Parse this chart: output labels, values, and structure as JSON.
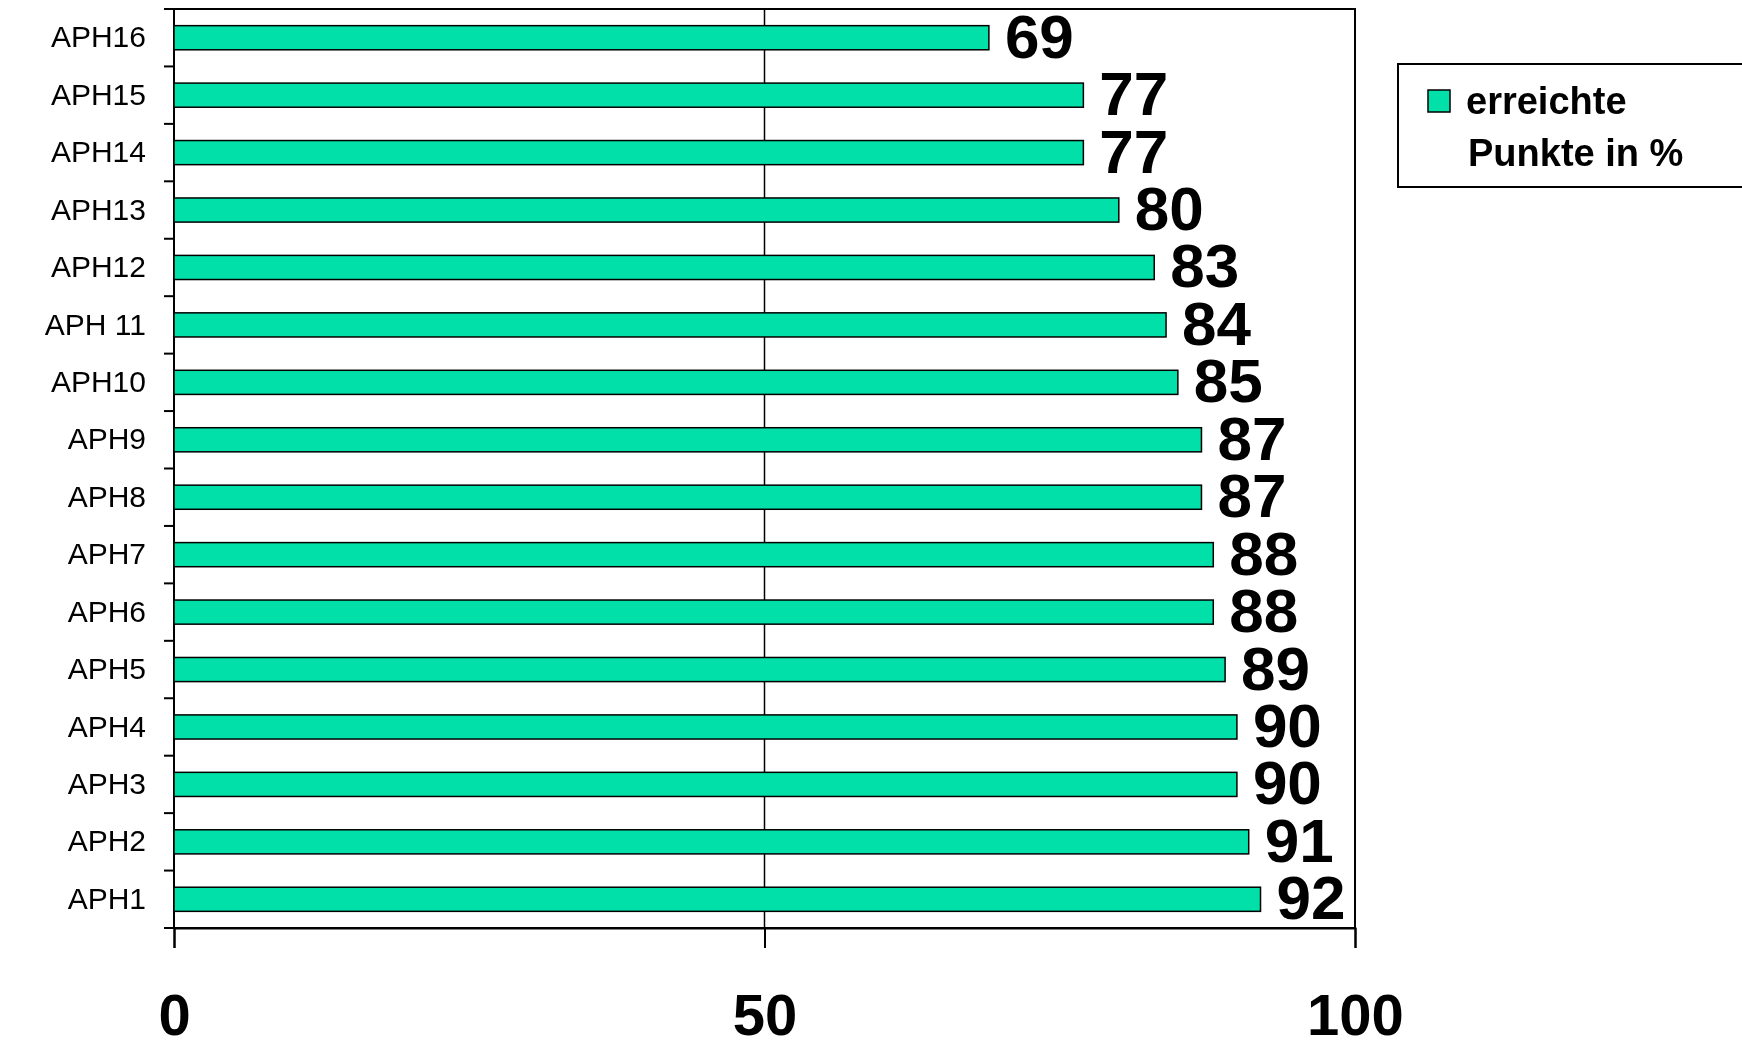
{
  "chart_data": {
    "type": "bar",
    "orientation": "horizontal",
    "categories": [
      "APH16",
      "APH15",
      "APH14",
      "APH13",
      "APH12",
      "APH 11",
      "APH10",
      "APH9",
      "APH8",
      "APH7",
      "APH6",
      "APH5",
      "APH4",
      "APH3",
      "APH2",
      "APH1"
    ],
    "series": [
      {
        "name": "erreichte Punkte in %",
        "color": "#00e0a8",
        "values": [
          69,
          77,
          77,
          80,
          83,
          84,
          85,
          87,
          87,
          88,
          88,
          89,
          90,
          90,
          91,
          92
        ]
      }
    ],
    "xlim": [
      0,
      100
    ],
    "xticks": [
      0,
      50,
      100
    ],
    "grid": "x",
    "legend": "top right",
    "data_labels": true
  }
}
